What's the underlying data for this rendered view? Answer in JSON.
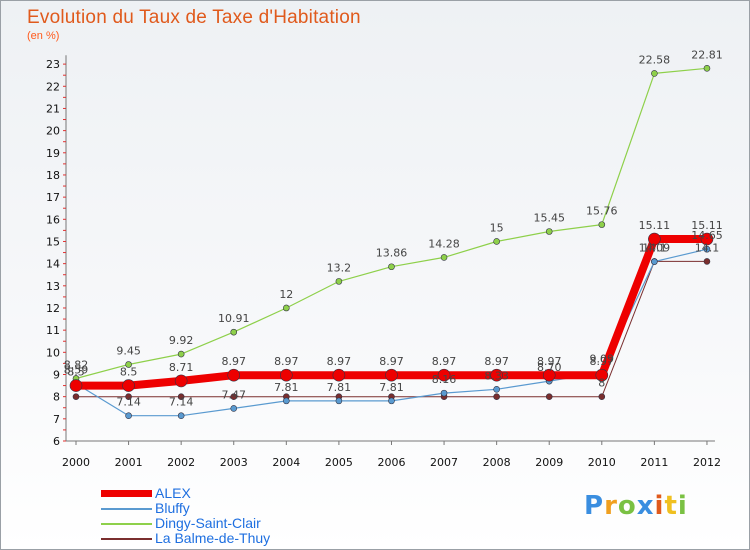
{
  "chart_data": {
    "type": "line",
    "title": "Evolution du Taux de Taxe d'Habitation",
    "subtitle": "(en %)",
    "categories": [
      "2000",
      "2001",
      "2002",
      "2003",
      "2004",
      "2005",
      "2006",
      "2007",
      "2008",
      "2009",
      "2010",
      "2011",
      "2012"
    ],
    "yticks": [
      6,
      7,
      8,
      9,
      10,
      11,
      12,
      13,
      14,
      15,
      16,
      17,
      18,
      19,
      20,
      21,
      22,
      23
    ],
    "ylim": [
      6,
      23.4
    ],
    "grid": false,
    "legend_position": "bottom-left",
    "series": [
      {
        "name": "La Balme-de-Thuy",
        "color": "#7a2e2e",
        "width": 1,
        "values": [
          8,
          8,
          8,
          8,
          8,
          8,
          8,
          8,
          8,
          8,
          8,
          14.1,
          14.1
        ],
        "labels": [
          "",
          "",
          "",
          "",
          "",
          "",
          "",
          "",
          "",
          "",
          "8",
          "14.1",
          "14.1"
        ]
      },
      {
        "name": "Bluffy",
        "color": "#5a9ad0",
        "width": 1.2,
        "values": [
          8.59,
          7.14,
          7.14,
          7.47,
          7.81,
          7.81,
          7.81,
          8.16,
          8.33,
          8.7,
          9.09,
          14.09,
          14.65
        ],
        "labels": [
          "8.59",
          "7.14",
          "7.14",
          "7.47",
          "7.81",
          "7.81",
          "7.81",
          "8.16",
          "8.33",
          "8.70",
          "9.09",
          "14.09",
          "14.65"
        ]
      },
      {
        "name": "Dingy-Saint-Clair",
        "color": "#8ed04a",
        "width": 1.2,
        "values": [
          8.82,
          9.45,
          9.92,
          10.91,
          12,
          13.2,
          13.86,
          14.28,
          15,
          15.45,
          15.76,
          22.58,
          22.81
        ],
        "labels": [
          "8.82",
          "9.45",
          "9.92",
          "10.91",
          "12",
          "13.2",
          "13.86",
          "14.28",
          "15",
          "15.45",
          "15.76",
          "22.58",
          "22.81"
        ]
      },
      {
        "name": "ALEX",
        "color": "#ee0000",
        "width": 8,
        "values": [
          8.5,
          8.5,
          8.71,
          8.97,
          8.97,
          8.97,
          8.97,
          8.97,
          8.97,
          8.97,
          8.97,
          15.11,
          15.11
        ],
        "labels": [
          "8.5",
          "8.5",
          "8.71",
          "8.97",
          "8.97",
          "8.97",
          "8.97",
          "8.97",
          "8.97",
          "8.97",
          "8.97",
          "15.11",
          "15.11"
        ]
      }
    ]
  },
  "legend": [
    {
      "name": "ALEX",
      "color": "#ee0000"
    },
    {
      "name": "Bluffy",
      "color": "#5a9ad0"
    },
    {
      "name": "Dingy-Saint-Clair",
      "color": "#8ed04a"
    },
    {
      "name": "La Balme-de-Thuy",
      "color": "#7a2e2e"
    }
  ],
  "logo": {
    "letters": [
      "P",
      "r",
      "o",
      "x",
      "i",
      "t",
      "i"
    ],
    "colors": [
      "#3a8ee0",
      "#f0a020",
      "#7ac143",
      "#3a8ee0",
      "#e05a1c",
      "#f0c020",
      "#7ac143"
    ]
  }
}
